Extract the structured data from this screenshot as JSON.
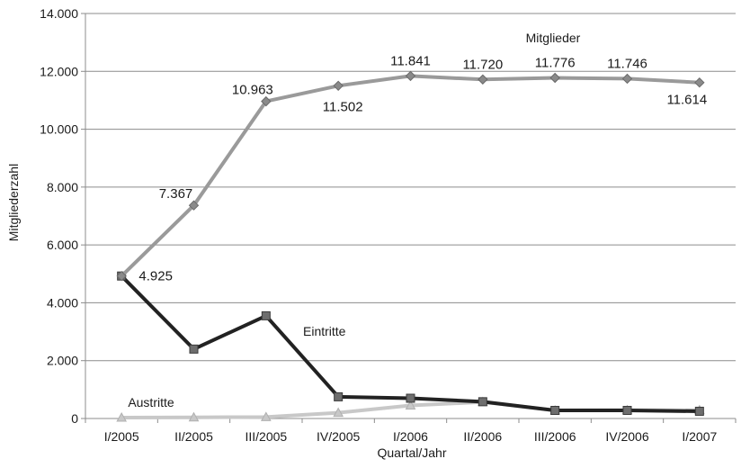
{
  "chart_data": {
    "type": "line",
    "title": "",
    "xlabel": "Quartal/Jahr",
    "ylabel": "Mitgliederzahl",
    "categories": [
      "I/2005",
      "II/2005",
      "III/2005",
      "IV/2005",
      "I/2006",
      "II/2006",
      "III/2006",
      "IV/2006",
      "I/2007"
    ],
    "ylim": [
      0,
      14000
    ],
    "yticks": [
      0,
      2000,
      4000,
      6000,
      8000,
      10000,
      12000,
      14000
    ],
    "ytick_labels": [
      "0",
      "2.000",
      "4.000",
      "6.000",
      "8.000",
      "10.000",
      "12.000",
      "14.000"
    ],
    "grid": true,
    "legend": "none",
    "series": [
      {
        "name": "Mitglieder",
        "color": "#9a9a9a",
        "marker": "diamond",
        "values": [
          4925,
          7367,
          10963,
          11502,
          11841,
          11720,
          11776,
          11746,
          11614
        ],
        "data_labels": [
          "4.925",
          "7.367",
          "10.963",
          "11.502",
          "11.841",
          "11.720",
          "11.776",
          "11.746",
          "11.614"
        ]
      },
      {
        "name": "Eintritte",
        "color": "#222222",
        "marker": "square",
        "values": [
          4925,
          2400,
          3550,
          750,
          700,
          580,
          280,
          280,
          250
        ]
      },
      {
        "name": "Austritte",
        "color": "#c8c8c8",
        "marker": "triangle",
        "values": [
          30,
          40,
          50,
          200,
          450,
          570,
          280,
          290,
          290
        ]
      }
    ]
  }
}
